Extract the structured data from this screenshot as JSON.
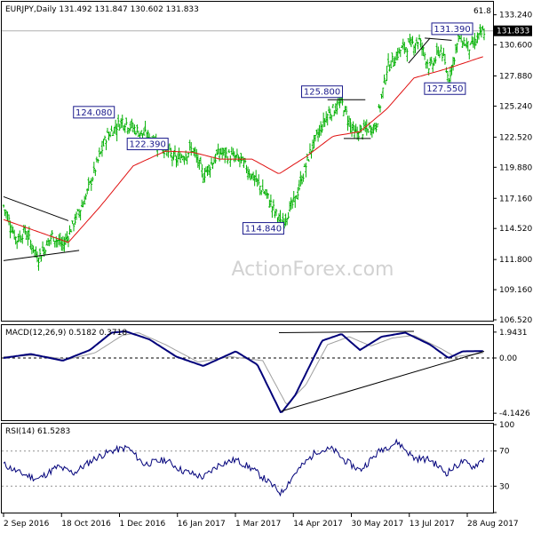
{
  "chart_data": [
    {
      "type": "ohlc",
      "title": "EURJPY,Daily",
      "ohlc_header": "131.492 131.847 130.602 131.833",
      "top_right_label": "61.8",
      "watermark": "ActionForex.com",
      "current_price": 131.833,
      "current_price_label": "131.833",
      "ylim": [
        106.52,
        134.3
      ],
      "y_ticks": [
        133.24,
        130.6,
        127.88,
        125.24,
        122.52,
        119.88,
        117.16,
        114.52,
        111.8,
        109.16,
        106.52
      ],
      "y_tick_labels": [
        "133.240",
        "130.600",
        "127.880",
        "125.240",
        "122.520",
        "119.880",
        "117.160",
        "114.520",
        "111.800",
        "109.160",
        "106.520"
      ],
      "x_ticks": [
        "2 Sep 2016",
        "18 Oct 2016",
        "1 Dec 2016",
        "16 Jan 2017",
        "1 Mar 2017",
        "14 Apr 2017",
        "30 May 2017",
        "13 Jul 2017",
        "28 Aug 2017"
      ],
      "key_points": [
        {
          "t": 0,
          "v": 116.5
        },
        {
          "t": 12,
          "v": 113.5
        },
        {
          "t": 20,
          "v": 114.3
        },
        {
          "t": 32,
          "v": 111.9
        },
        {
          "t": 45,
          "v": 113.9
        },
        {
          "t": 55,
          "v": 113.0
        },
        {
          "t": 75,
          "v": 117.0
        },
        {
          "t": 95,
          "v": 122.5
        },
        {
          "t": 110,
          "v": 124.0
        },
        {
          "t": 125,
          "v": 123.0
        },
        {
          "t": 140,
          "v": 122.3
        },
        {
          "t": 160,
          "v": 120.5
        },
        {
          "t": 175,
          "v": 121.5
        },
        {
          "t": 185,
          "v": 119.2
        },
        {
          "t": 200,
          "v": 121.2
        },
        {
          "t": 220,
          "v": 120.5
        },
        {
          "t": 245,
          "v": 117.2
        },
        {
          "t": 257,
          "v": 114.84
        },
        {
          "t": 270,
          "v": 117.0
        },
        {
          "t": 285,
          "v": 121.5
        },
        {
          "t": 300,
          "v": 124.5
        },
        {
          "t": 313,
          "v": 125.6
        },
        {
          "t": 325,
          "v": 122.8
        },
        {
          "t": 345,
          "v": 123.5
        },
        {
          "t": 355,
          "v": 128.5
        },
        {
          "t": 368,
          "v": 130.2
        },
        {
          "t": 385,
          "v": 131.0
        },
        {
          "t": 395,
          "v": 128.5
        },
        {
          "t": 405,
          "v": 130.3
        },
        {
          "t": 412,
          "v": 127.6
        },
        {
          "t": 422,
          "v": 131.3
        },
        {
          "t": 432,
          "v": 130.3
        },
        {
          "t": 445,
          "v": 131.83
        }
      ],
      "ma_key_points": [
        {
          "t": 0,
          "v": 115.3
        },
        {
          "t": 30,
          "v": 114.3
        },
        {
          "t": 60,
          "v": 113.3
        },
        {
          "t": 90,
          "v": 116.5
        },
        {
          "t": 120,
          "v": 120.0
        },
        {
          "t": 150,
          "v": 121.3
        },
        {
          "t": 175,
          "v": 121.2
        },
        {
          "t": 200,
          "v": 120.6
        },
        {
          "t": 230,
          "v": 120.6
        },
        {
          "t": 255,
          "v": 119.3
        },
        {
          "t": 280,
          "v": 120.8
        },
        {
          "t": 305,
          "v": 122.6
        },
        {
          "t": 330,
          "v": 123.0
        },
        {
          "t": 355,
          "v": 125.0
        },
        {
          "t": 380,
          "v": 127.7
        },
        {
          "t": 410,
          "v": 128.5
        },
        {
          "t": 445,
          "v": 129.6
        }
      ],
      "annotations": [
        {
          "label": "124.080",
          "value": 124.08
        },
        {
          "label": "114.840",
          "value": 114.84
        },
        {
          "label": "125.800",
          "value": 125.8
        },
        {
          "label": "122.390",
          "value": 122.39
        },
        {
          "label": "131.390",
          "value": 131.39
        },
        {
          "label": "127.550",
          "value": 127.55
        }
      ],
      "colors": {
        "bars": "#00b000",
        "ma": "#e01010",
        "lines": "#000000",
        "label_border": "#1a1a8c"
      }
    },
    {
      "type": "line",
      "title": "MACD(12,26,9) 0.5182 0.3718",
      "ylim": [
        -4.6,
        2.4
      ],
      "y_ticks": [
        1.9431,
        0.0,
        -4.1426
      ],
      "y_tick_labels": [
        "1.9431",
        "0.00",
        "-4.1426"
      ],
      "series": [
        {
          "name": "MACD",
          "color": "#00007a",
          "key_points": [
            {
              "t": 0,
              "v": 0.0
            },
            {
              "t": 25,
              "v": 0.3
            },
            {
              "t": 55,
              "v": -0.2
            },
            {
              "t": 80,
              "v": 0.6
            },
            {
              "t": 100,
              "v": 1.9
            },
            {
              "t": 113,
              "v": 2.0
            },
            {
              "t": 135,
              "v": 1.4
            },
            {
              "t": 160,
              "v": 0.1
            },
            {
              "t": 185,
              "v": -0.6
            },
            {
              "t": 215,
              "v": 0.5
            },
            {
              "t": 235,
              "v": -0.5
            },
            {
              "t": 257,
              "v": -4.1426
            },
            {
              "t": 270,
              "v": -2.8
            },
            {
              "t": 295,
              "v": 1.3
            },
            {
              "t": 313,
              "v": 1.8
            },
            {
              "t": 330,
              "v": 0.6
            },
            {
              "t": 350,
              "v": 1.6
            },
            {
              "t": 372,
              "v": 1.9
            },
            {
              "t": 395,
              "v": 1.0
            },
            {
              "t": 412,
              "v": 0.0
            },
            {
              "t": 425,
              "v": 0.5
            },
            {
              "t": 445,
              "v": 0.5182
            }
          ]
        },
        {
          "name": "Signal",
          "color": "#a0a0a0",
          "key_points": [
            {
              "t": 0,
              "v": 0.1
            },
            {
              "t": 30,
              "v": 0.2
            },
            {
              "t": 60,
              "v": -0.1
            },
            {
              "t": 85,
              "v": 0.4
            },
            {
              "t": 110,
              "v": 1.7
            },
            {
              "t": 125,
              "v": 1.9
            },
            {
              "t": 150,
              "v": 1.0
            },
            {
              "t": 180,
              "v": -0.3
            },
            {
              "t": 210,
              "v": 0.1
            },
            {
              "t": 240,
              "v": -0.2
            },
            {
              "t": 262,
              "v": -3.5
            },
            {
              "t": 280,
              "v": -2.0
            },
            {
              "t": 300,
              "v": 1.0
            },
            {
              "t": 320,
              "v": 1.6
            },
            {
              "t": 340,
              "v": 0.9
            },
            {
              "t": 360,
              "v": 1.5
            },
            {
              "t": 380,
              "v": 1.7
            },
            {
              "t": 405,
              "v": 0.7
            },
            {
              "t": 418,
              "v": 0.1
            },
            {
              "t": 445,
              "v": 0.3718
            }
          ]
        }
      ]
    },
    {
      "type": "line",
      "title": "RSI(14) 61.5283",
      "ylim": [
        0,
        100
      ],
      "y_ticks": [
        100,
        70,
        30,
        0
      ],
      "y_tick_labels": [
        "100",
        "70",
        "30",
        "0"
      ],
      "series": [
        {
          "name": "RSI",
          "color": "#00007a",
          "key_points": [
            {
              "t": 0,
              "v": 55
            },
            {
              "t": 15,
              "v": 45
            },
            {
              "t": 32,
              "v": 38
            },
            {
              "t": 50,
              "v": 52
            },
            {
              "t": 65,
              "v": 45
            },
            {
              "t": 85,
              "v": 62
            },
            {
              "t": 100,
              "v": 70
            },
            {
              "t": 115,
              "v": 74
            },
            {
              "t": 130,
              "v": 55
            },
            {
              "t": 150,
              "v": 60
            },
            {
              "t": 165,
              "v": 48
            },
            {
              "t": 185,
              "v": 40
            },
            {
              "t": 200,
              "v": 55
            },
            {
              "t": 215,
              "v": 60
            },
            {
              "t": 230,
              "v": 50
            },
            {
              "t": 245,
              "v": 35
            },
            {
              "t": 257,
              "v": 22
            },
            {
              "t": 270,
              "v": 45
            },
            {
              "t": 290,
              "v": 70
            },
            {
              "t": 305,
              "v": 72
            },
            {
              "t": 315,
              "v": 60
            },
            {
              "t": 330,
              "v": 48
            },
            {
              "t": 350,
              "v": 72
            },
            {
              "t": 365,
              "v": 80
            },
            {
              "t": 380,
              "v": 62
            },
            {
              "t": 395,
              "v": 60
            },
            {
              "t": 410,
              "v": 45
            },
            {
              "t": 425,
              "v": 58
            },
            {
              "t": 435,
              "v": 52
            },
            {
              "t": 445,
              "v": 61.5283
            }
          ]
        }
      ]
    }
  ]
}
